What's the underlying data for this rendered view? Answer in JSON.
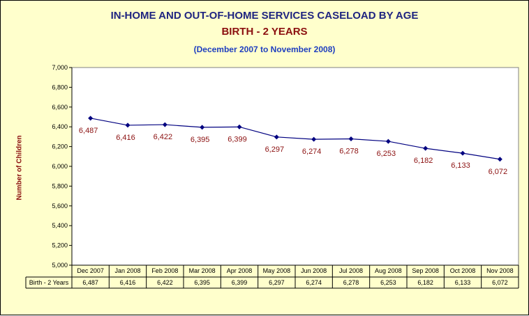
{
  "chart_data": {
    "type": "line",
    "title": "IN-HOME AND OUT-OF-HOME SERVICES CASELOAD BY AGE",
    "subtitle": "BIRTH - 2 YEARS",
    "date_range": "(December 2007 to November 2008)",
    "ylabel": "Number of Children",
    "ylim": [
      5000,
      7000
    ],
    "yticks": [
      "5,000",
      "5,200",
      "5,400",
      "5,600",
      "5,800",
      "6,000",
      "6,200",
      "6,400",
      "6,600",
      "6,800",
      "7,000"
    ],
    "ytick_values": [
      5000,
      5200,
      5400,
      5600,
      5800,
      6000,
      6200,
      6400,
      6600,
      6800,
      7000
    ],
    "categories": [
      "Dec 2007",
      "Jan 2008",
      "Feb 2008",
      "Mar 2008",
      "Apr 2008",
      "May 2008",
      "Jun 2008",
      "Jul 2008",
      "Aug 2008",
      "Sep 2008",
      "Oct 2008",
      "Nov 2008"
    ],
    "series": [
      {
        "name": "Birth - 2 Years",
        "values": [
          6487,
          6416,
          6422,
          6395,
          6399,
          6297,
          6274,
          6278,
          6253,
          6182,
          6133,
          6072
        ],
        "labels": [
          "6,487",
          "6,416",
          "6,422",
          "6,395",
          "6,399",
          "6,297",
          "6,274",
          "6,278",
          "6,253",
          "6,182",
          "6,133",
          "6,072"
        ],
        "color": "#000080",
        "label_color": "#8b0f0f"
      }
    ],
    "grid": false,
    "data_table": true,
    "plot_background": "#ffffff",
    "chart_background": "#ffffcc"
  }
}
